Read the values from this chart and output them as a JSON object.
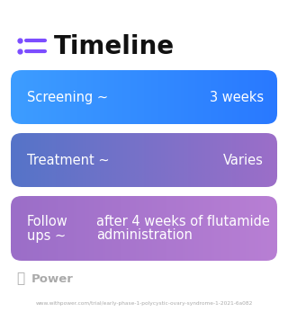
{
  "title": "Timeline",
  "title_fontsize": 20,
  "title_color": "#111111",
  "icon_color": "#7c4dff",
  "background_color": "#ffffff",
  "rows": [
    {
      "label": "Screening ~",
      "value": "3 weeks",
      "box_color_left": "#3d9dff",
      "box_color_right": "#2979ff",
      "text_color": "#ffffff",
      "multiline": false
    },
    {
      "label": "Treatment ~",
      "value": "Varies",
      "box_color_left": "#5574c8",
      "box_color_right": "#9c6ec8",
      "text_color": "#ffffff",
      "multiline": false
    },
    {
      "label_line1": "Follow",
      "label_line2": "ups ~",
      "value_line1": "after 4 weeks of flutamide",
      "value_line2": "administration",
      "box_color_left": "#9b6ec8",
      "box_color_right": "#b87fd4",
      "text_color": "#ffffff",
      "multiline": true
    }
  ],
  "footer_text": "Power",
  "footer_url": "www.withpower.com/trial/early-phase-1-polycystic-ovary-syndrome-1-2021-6a082",
  "footer_color": "#aaaaaa",
  "footer_icon_color": "#aaaaaa"
}
